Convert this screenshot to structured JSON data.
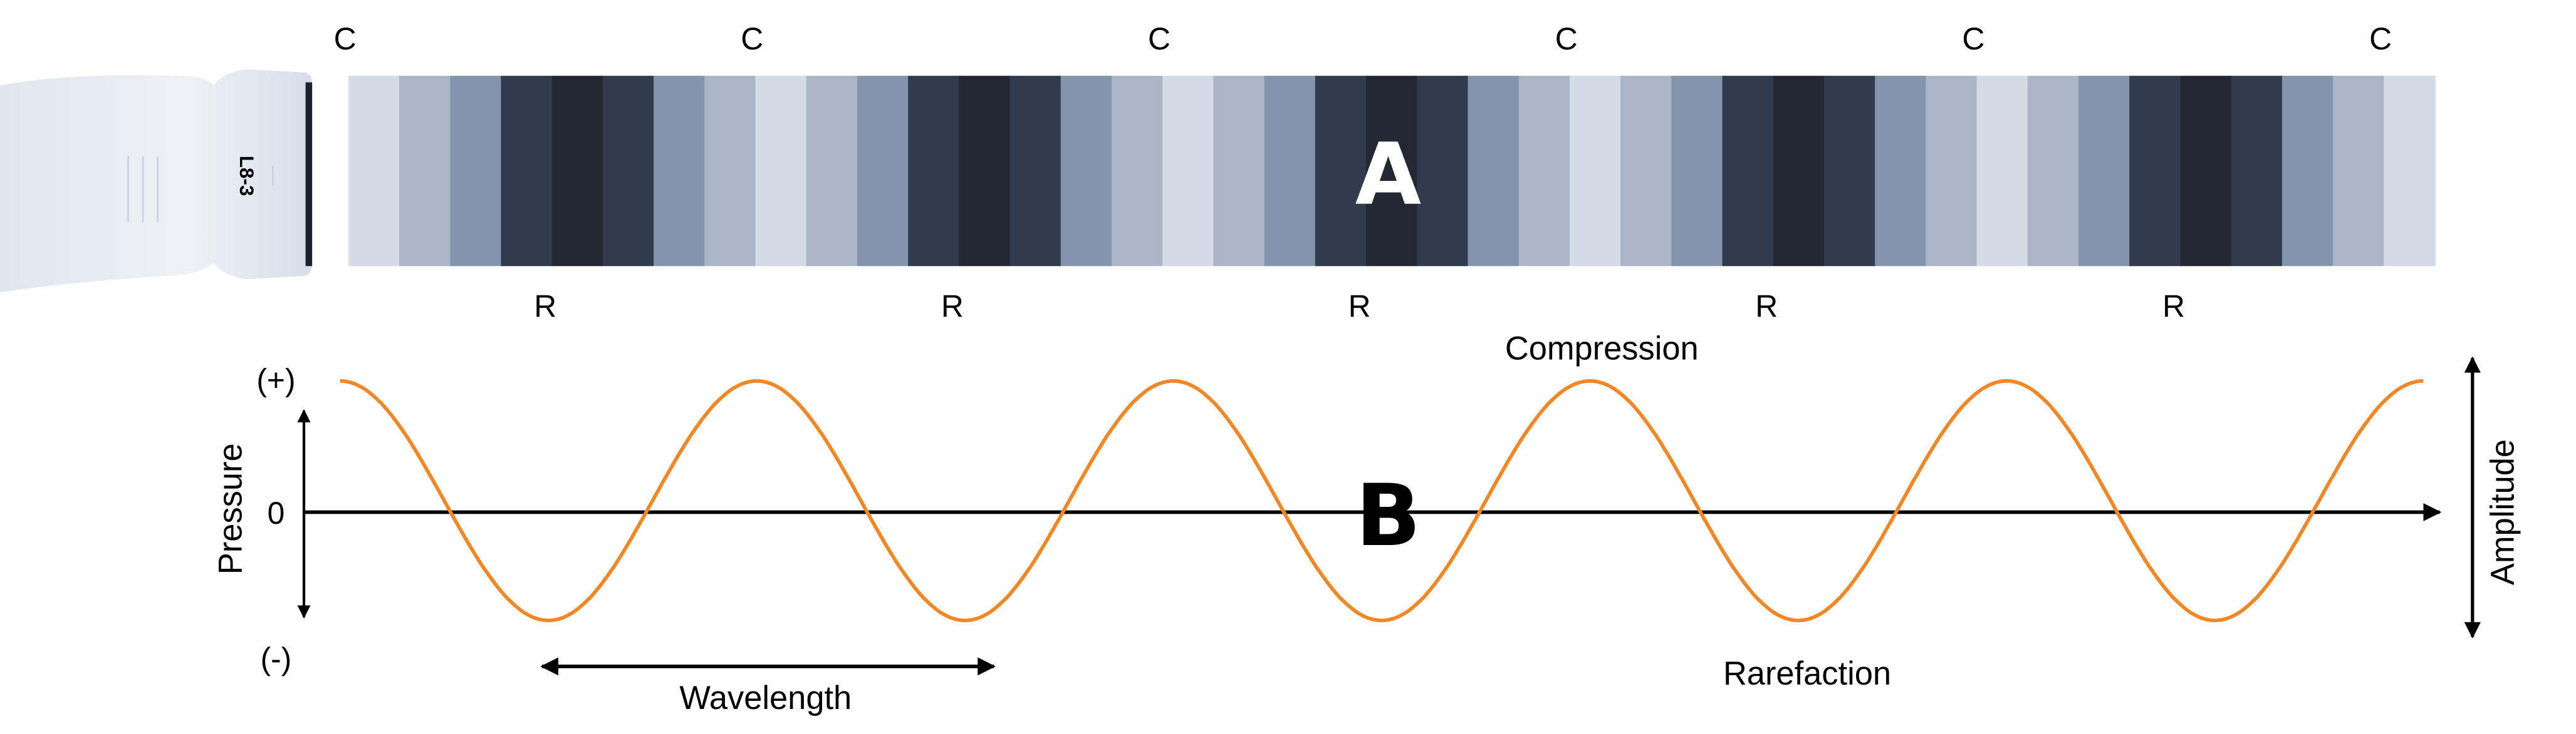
{
  "probe": {
    "model_label": "L8-3"
  },
  "panel_a": {
    "letter": "A",
    "compression_marker": "C",
    "rarefaction_marker": "R",
    "compression_label": "Compression",
    "stripe_colors": [
      "#d3dbe4",
      "#aab6c8",
      "#8594ae",
      "#303b4e",
      "#232833"
    ]
  },
  "panel_b": {
    "letter": "B",
    "pressure_label": "Pressure",
    "plus_label": "(+)",
    "zero_label": "0",
    "minus_label": "(-)",
    "wavelength_label": "Wavelength",
    "rarefaction_label": "Rarefaction",
    "amplitude_label": "Amplitude",
    "wave_color": "#f0882a",
    "cycles": 5
  }
}
